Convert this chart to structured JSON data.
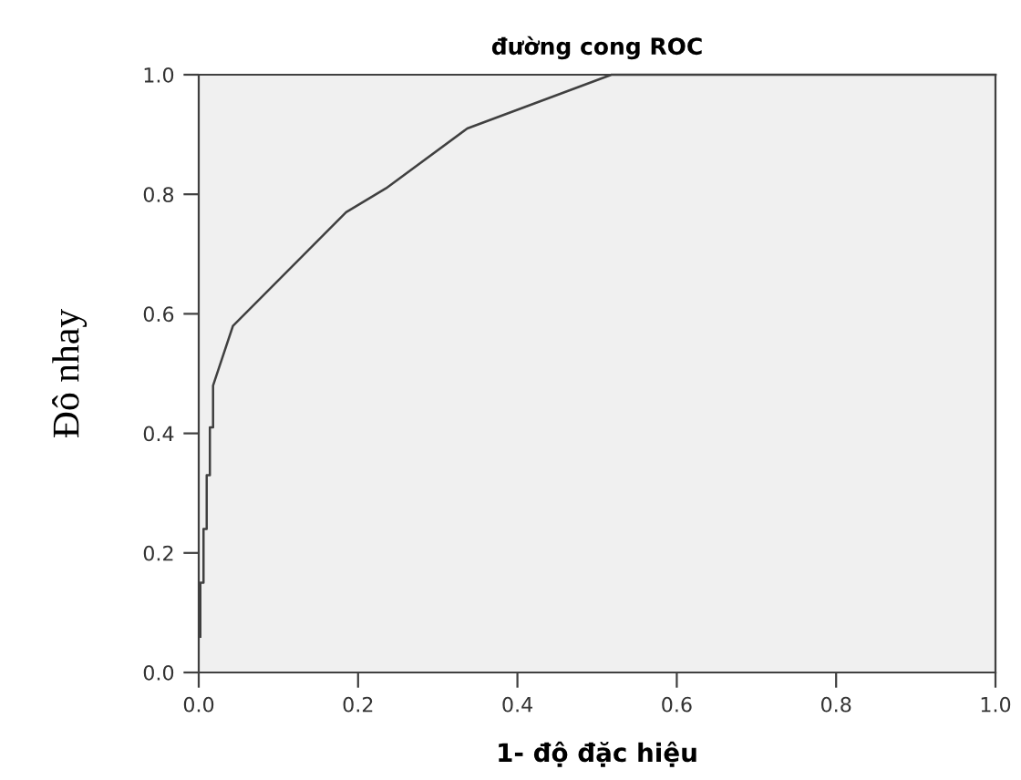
{
  "chart_data": {
    "type": "line",
    "title": "đường cong ROC",
    "xlabel": "1- độ đặc hiệu",
    "ylabel": "Đô nhay",
    "series": [
      {
        "color": "#404040",
        "x": [
          0.002,
          0.002,
          0.006,
          0.006,
          0.01,
          0.01,
          0.014,
          0.014,
          0.018,
          0.018,
          0.043,
          0.185,
          0.235,
          0.337,
          0.518,
          1.0
        ],
        "values": [
          0.06,
          0.15,
          0.15,
          0.24,
          0.24,
          0.33,
          0.33,
          0.41,
          0.41,
          0.48,
          0.58,
          0.77,
          0.81,
          0.91,
          1.0,
          1.0
        ]
      }
    ],
    "xlim": [
      0,
      1
    ],
    "ylim": [
      0,
      1
    ],
    "xticks": [
      {
        "value": 0,
        "label": "0.0"
      },
      {
        "value": 0.2,
        "label": "0.2"
      },
      {
        "value": 0.4,
        "label": "0.4"
      },
      {
        "value": 0.6,
        "label": "0.6"
      },
      {
        "value": 0.8,
        "label": "0.8"
      },
      {
        "value": 1,
        "label": "1.0"
      }
    ],
    "yticks": [
      {
        "value": 0,
        "label": "0.0"
      },
      {
        "value": 0.2,
        "label": "0.2"
      },
      {
        "value": 0.4,
        "label": "0.4"
      },
      {
        "value": 0.6,
        "label": "0.6"
      },
      {
        "value": 0.8,
        "label": "0.8"
      },
      {
        "value": 1,
        "label": "1.0"
      }
    ],
    "grid": false,
    "marker": "none",
    "line_style": "solid"
  }
}
